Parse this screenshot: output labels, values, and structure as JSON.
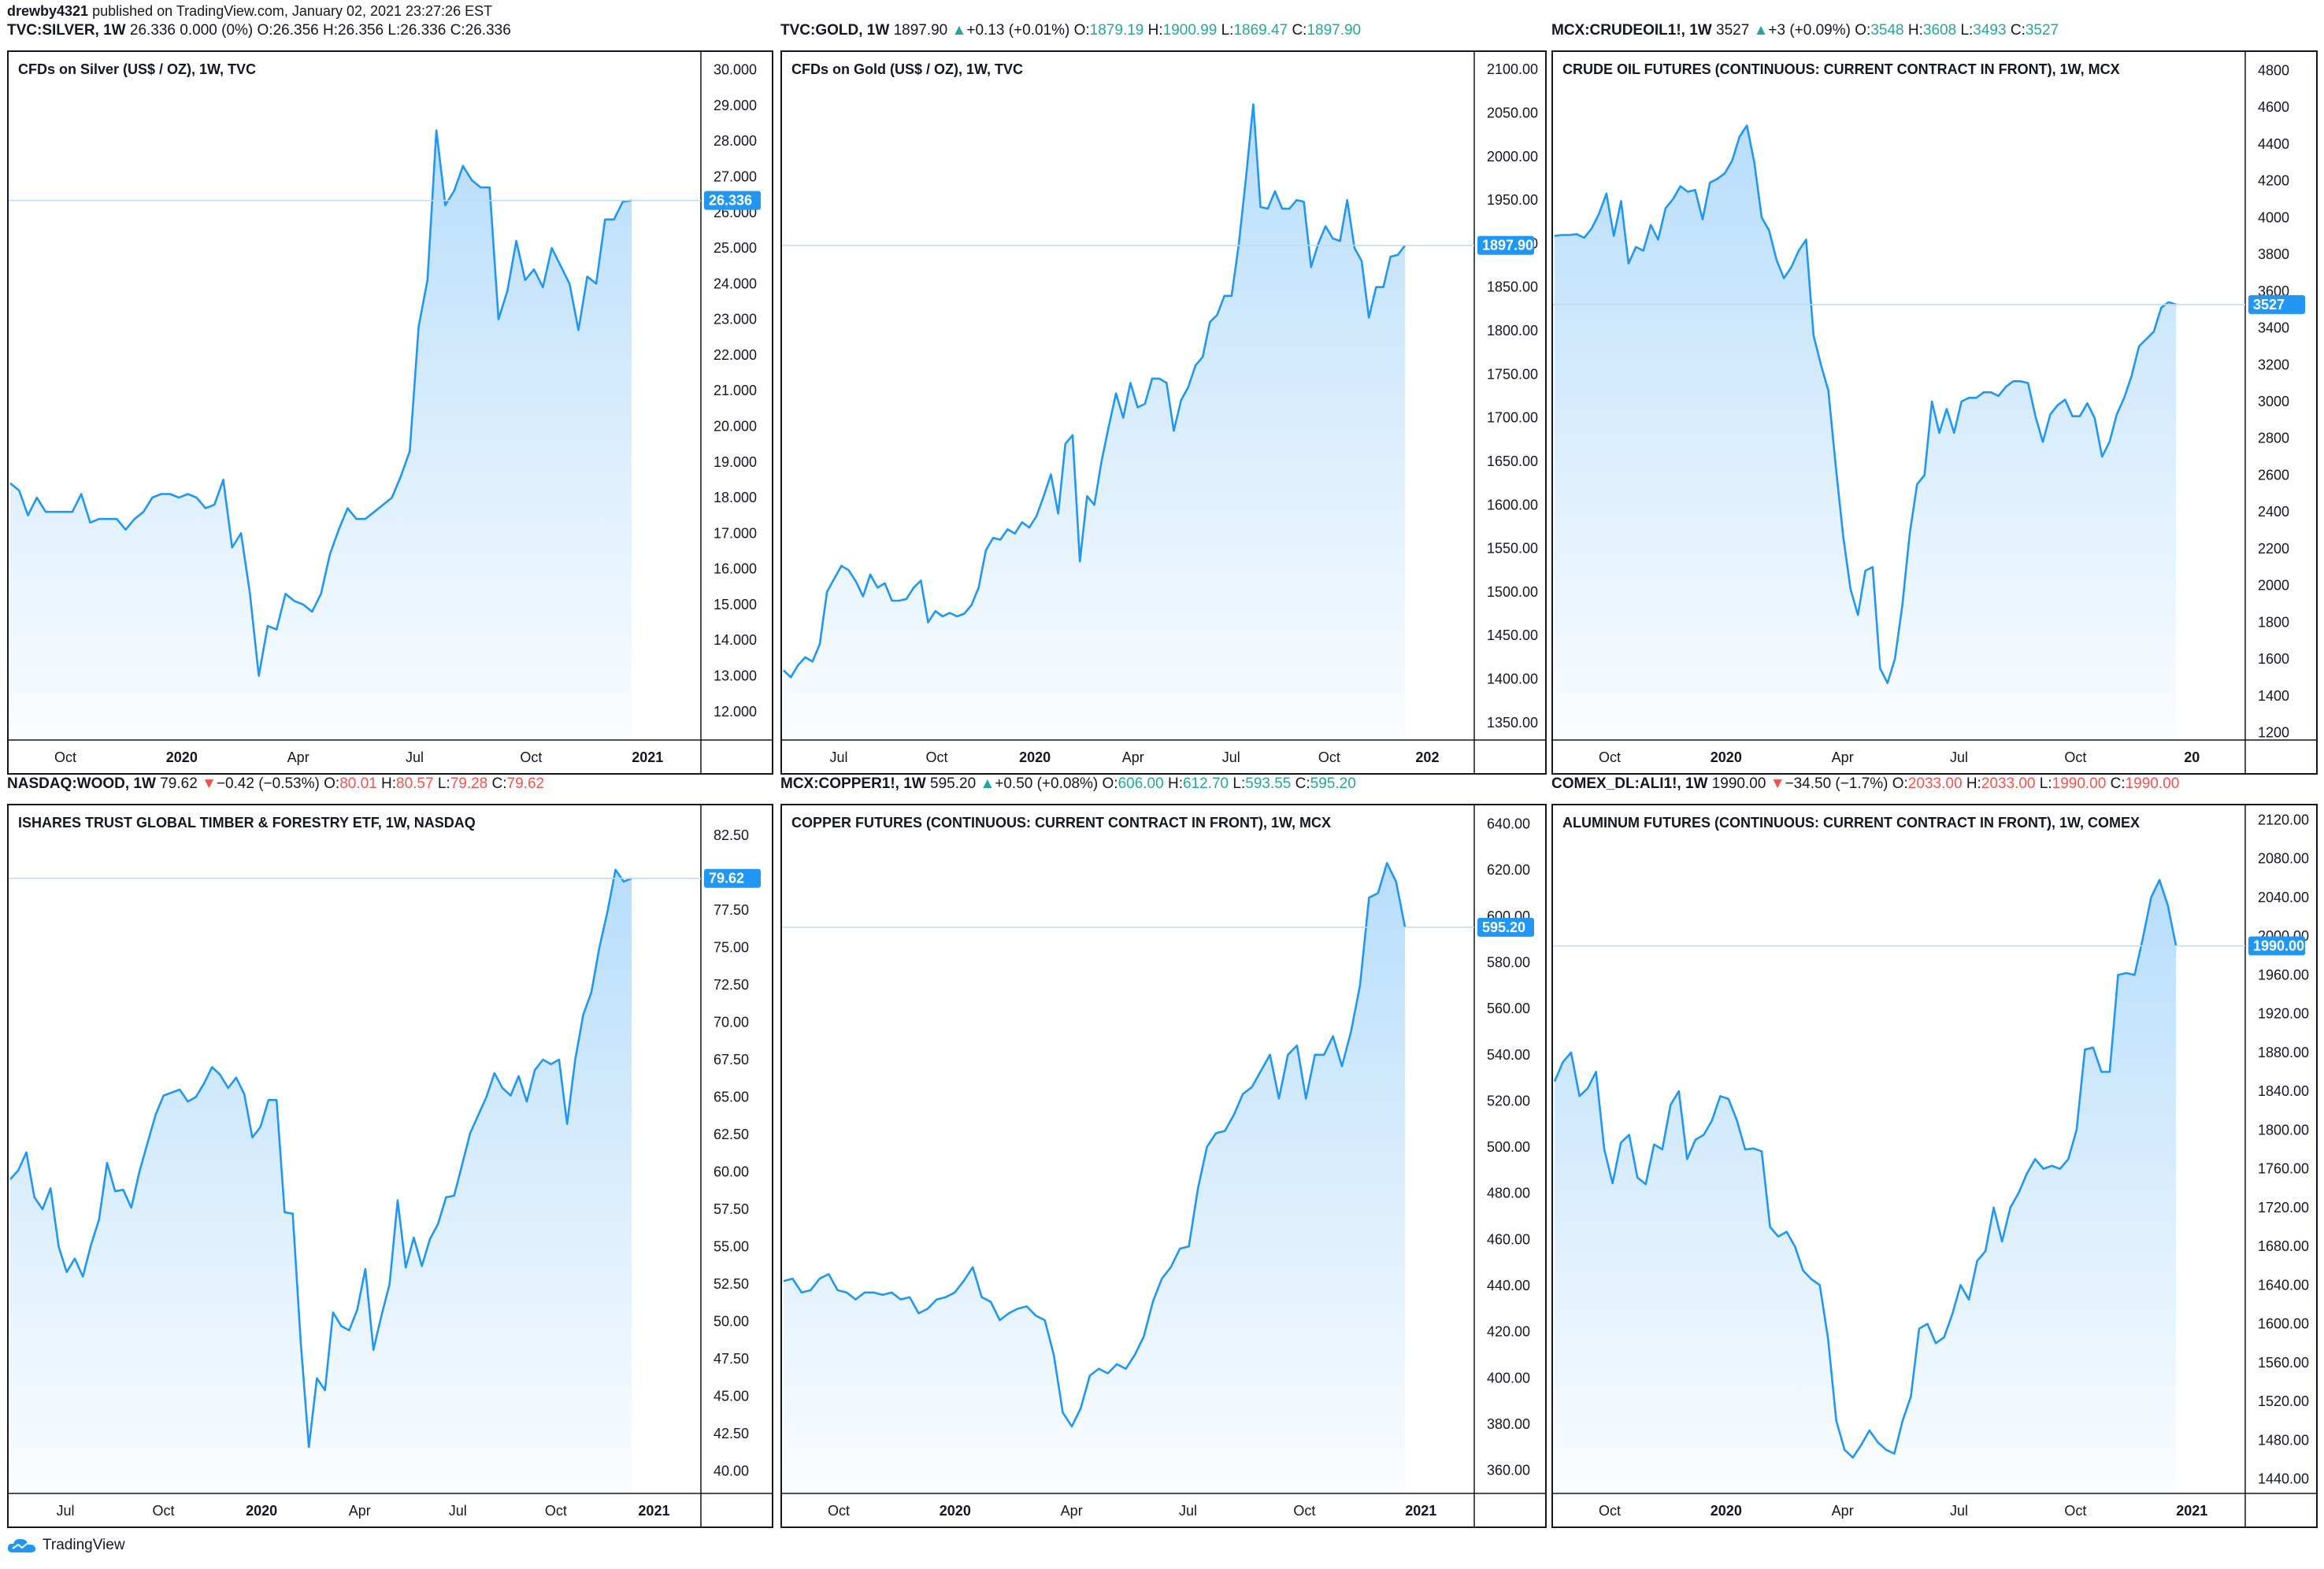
{
  "publisher": {
    "author": "drewby4321",
    "text": "published on TradingView.com, January 02, 2021 23:27:26 EST"
  },
  "footer": {
    "brand": "TradingView"
  },
  "colors": {
    "line": "#2196f3",
    "up": "#26a69a",
    "down": "#ef5350",
    "grid_price_line": "#bcdcf6"
  },
  "panels": [
    {
      "header": {
        "symbol": "TVC:SILVER, 1W",
        "last": "26.336",
        "change": "0.000 (0%)",
        "dir": "flat",
        "o": "26.356",
        "h": "26.356",
        "l": "26.336",
        "c": "26.336"
      },
      "title": "CFDs on Silver (US$ / OZ), 1W, TVC",
      "price_tag": "26.336",
      "y_ticks": [
        "30.000",
        "29.000",
        "28.000",
        "27.000",
        "26.000",
        "25.000",
        "24.000",
        "23.000",
        "22.000",
        "21.000",
        "20.000",
        "19.000",
        "18.000",
        "17.000",
        "16.000",
        "15.000",
        "14.000",
        "13.000",
        "12.000"
      ],
      "x_ticks": [
        "Oct",
        "2020",
        "Apr",
        "Jul",
        "Oct",
        "2021"
      ]
    },
    {
      "header": {
        "symbol": "TVC:GOLD, 1W",
        "last": "1897.90",
        "change": "+0.13 (+0.01%)",
        "dir": "up",
        "o": "1879.19",
        "h": "1900.99",
        "l": "1869.47",
        "c": "1897.90"
      },
      "title": "CFDs on Gold (US$ / OZ), 1W, TVC",
      "price_tag": "1897.90",
      "y_ticks": [
        "2100.00",
        "2050.00",
        "2000.00",
        "1950.00",
        "1900.00",
        "1850.00",
        "1800.00",
        "1750.00",
        "1700.00",
        "1650.00",
        "1600.00",
        "1550.00",
        "1500.00",
        "1450.00",
        "1400.00",
        "1350.00"
      ],
      "x_ticks": [
        "Jul",
        "Oct",
        "2020",
        "Apr",
        "Jul",
        "Oct",
        "202"
      ]
    },
    {
      "header": {
        "symbol": "MCX:CRUDEOIL1!, 1W",
        "last": "3527",
        "change": "+3 (+0.09%)",
        "dir": "up",
        "o": "3548",
        "h": "3608",
        "l": "3493",
        "c": "3527"
      },
      "title": "CRUDE OIL FUTURES (CONTINUOUS: CURRENT CONTRACT IN FRONT), 1W, MCX",
      "price_tag": "3527",
      "y_ticks": [
        "4800",
        "4600",
        "4400",
        "4200",
        "4000",
        "3800",
        "3600",
        "3400",
        "3200",
        "3000",
        "2800",
        "2600",
        "2400",
        "2200",
        "2000",
        "1800",
        "1600",
        "1400",
        "1200"
      ],
      "x_ticks": [
        "Oct",
        "2020",
        "Apr",
        "Jul",
        "Oct",
        "20"
      ]
    },
    {
      "header": {
        "symbol": "NASDAQ:WOOD, 1W",
        "last": "79.62",
        "change": "−0.42 (−0.53%)",
        "dir": "down",
        "o": "80.01",
        "h": "80.57",
        "l": "79.28",
        "c": "79.62"
      },
      "title": "ISHARES TRUST GLOBAL TIMBER & FORESTRY ETF, 1W, NASDAQ",
      "price_tag": "79.62",
      "y_ticks": [
        "82.50",
        "77.50",
        "75.00",
        "72.50",
        "70.00",
        "67.50",
        "65.00",
        "62.50",
        "60.00",
        "57.50",
        "55.00",
        "52.50",
        "50.00",
        "47.50",
        "45.00",
        "42.50",
        "40.00"
      ],
      "x_ticks": [
        "Jul",
        "Oct",
        "2020",
        "Apr",
        "Jul",
        "Oct",
        "2021"
      ]
    },
    {
      "header": {
        "symbol": "MCX:COPPER1!, 1W",
        "last": "595.20",
        "change": "+0.50 (+0.08%)",
        "dir": "up",
        "o": "606.00",
        "h": "612.70",
        "l": "593.55",
        "c": "595.20"
      },
      "title": "COPPER FUTURES (CONTINUOUS: CURRENT CONTRACT IN FRONT), 1W, MCX",
      "price_tag": "595.20",
      "y_ticks": [
        "640.00",
        "620.00",
        "600.00",
        "580.00",
        "560.00",
        "540.00",
        "520.00",
        "500.00",
        "480.00",
        "460.00",
        "440.00",
        "420.00",
        "400.00",
        "380.00",
        "360.00"
      ],
      "x_ticks": [
        "Oct",
        "2020",
        "Apr",
        "Jul",
        "Oct",
        "2021"
      ]
    },
    {
      "header": {
        "symbol": "COMEX_DL:ALI1!, 1W",
        "last": "1990.00",
        "change": "−34.50 (−1.7%)",
        "dir": "down",
        "o": "2033.00",
        "h": "2033.00",
        "l": "1990.00",
        "c": "1990.00"
      },
      "title": "ALUMINUM FUTURES (CONTINUOUS: CURRENT CONTRACT IN FRONT), 1W, COMEX",
      "price_tag": "1990.00",
      "y_ticks": [
        "2120.00",
        "2080.00",
        "2040.00",
        "2000.00",
        "1960.00",
        "1920.00",
        "1880.00",
        "1840.00",
        "1800.00",
        "1760.00",
        "1720.00",
        "1680.00",
        "1640.00",
        "1600.00",
        "1560.00",
        "1520.00",
        "1480.00",
        "1440.00"
      ],
      "x_ticks": [
        "Oct",
        "2020",
        "Apr",
        "Jul",
        "Oct",
        "2021"
      ]
    }
  ],
  "chart_data": [
    {
      "type": "area",
      "title": "CFDs on Silver (US$ / OZ), 1W, TVC",
      "x_ticks": [
        "Oct",
        "2020",
        "Apr",
        "Jul",
        "Oct",
        "2021"
      ],
      "ylim": [
        11.2,
        30.5
      ],
      "last": 26.336,
      "values": [
        18.4,
        18.2,
        17.5,
        18.0,
        17.6,
        17.6,
        17.6,
        17.6,
        18.1,
        17.3,
        17.4,
        17.4,
        17.4,
        17.1,
        17.4,
        17.6,
        18.0,
        18.1,
        18.1,
        18.0,
        18.1,
        18.0,
        17.7,
        17.8,
        18.5,
        16.6,
        17.0,
        15.3,
        13.0,
        14.4,
        14.3,
        15.3,
        15.1,
        15.0,
        14.8,
        15.3,
        16.4,
        17.1,
        17.7,
        17.4,
        17.4,
        17.6,
        17.8,
        18.0,
        18.6,
        19.3,
        22.8,
        24.1,
        28.3,
        26.2,
        26.6,
        27.3,
        26.9,
        26.7,
        26.7,
        23.0,
        23.8,
        25.2,
        24.1,
        24.4,
        23.9,
        25.0,
        24.5,
        24.0,
        22.7,
        24.2,
        24.0,
        25.8,
        25.8,
        26.3,
        26.336
      ]
    },
    {
      "type": "area",
      "title": "CFDs on Gold (US$ / OZ), 1W, TVC",
      "x_ticks": [
        "Jul",
        "Oct",
        "2020",
        "Apr",
        "Jul",
        "Oct",
        "202"
      ],
      "ylim": [
        1330,
        2120
      ],
      "last": 1897.9,
      "values": [
        1410,
        1402,
        1416,
        1425,
        1420,
        1440,
        1500,
        1515,
        1530,
        1525,
        1512,
        1495,
        1520,
        1505,
        1510,
        1490,
        1490,
        1492,
        1505,
        1513,
        1465,
        1478,
        1472,
        1476,
        1472,
        1475,
        1485,
        1505,
        1548,
        1562,
        1560,
        1572,
        1567,
        1580,
        1574,
        1587,
        1610,
        1635,
        1590,
        1670,
        1680,
        1535,
        1610,
        1600,
        1650,
        1690,
        1728,
        1700,
        1740,
        1712,
        1716,
        1745,
        1745,
        1740,
        1685,
        1720,
        1735,
        1760,
        1770,
        1810,
        1818,
        1840,
        1840,
        1900,
        1976,
        2060,
        1942,
        1940,
        1960,
        1940,
        1940,
        1950,
        1948,
        1873,
        1900,
        1920,
        1906,
        1903,
        1950,
        1895,
        1880,
        1815,
        1850,
        1850,
        1885,
        1887,
        1897.9
      ]
    },
    {
      "type": "area",
      "title": "CRUDE OIL FUTURES (CONTINUOUS: CURRENT CONTRACT IN FRONT), 1W, MCX",
      "x_ticks": [
        "Oct",
        "2020",
        "Apr",
        "Jul",
        "Oct",
        "20"
      ],
      "ylim": [
        1160,
        4900
      ],
      "last": 3527,
      "values": [
        3900,
        3905,
        3905,
        3910,
        3890,
        3940,
        4020,
        4130,
        3900,
        4090,
        3750,
        3840,
        3820,
        3960,
        3880,
        4050,
        4100,
        4170,
        4140,
        4150,
        3990,
        4190,
        4210,
        4240,
        4310,
        4440,
        4500,
        4300,
        4000,
        3930,
        3770,
        3670,
        3730,
        3820,
        3880,
        3360,
        3200,
        3060,
        2650,
        2270,
        1980,
        1840,
        2080,
        2100,
        1550,
        1470,
        1600,
        1890,
        2280,
        2550,
        2600,
        3000,
        2830,
        2960,
        2830,
        3000,
        3020,
        3020,
        3050,
        3050,
        3030,
        3080,
        3110,
        3110,
        3100,
        2920,
        2780,
        2930,
        2980,
        3010,
        2920,
        2920,
        2990,
        2910,
        2700,
        2780,
        2930,
        3020,
        3140,
        3300,
        3340,
        3380,
        3510,
        3540,
        3527
      ]
    },
    {
      "type": "area",
      "title": "ISHARES TRUST GLOBAL TIMBER & FORESTRY ETF, 1W, NASDAQ",
      "x_ticks": [
        "Jul",
        "Oct",
        "2020",
        "Apr",
        "Jul",
        "Oct",
        "2021"
      ],
      "ylim": [
        38.5,
        84.5
      ],
      "last": 79.62,
      "values": [
        59.5,
        60.1,
        61.3,
        58.3,
        57.5,
        58.9,
        55.0,
        53.3,
        54.2,
        53.0,
        55.1,
        56.8,
        60.6,
        58.7,
        58.8,
        57.6,
        60.0,
        61.9,
        63.8,
        65.1,
        65.3,
        65.5,
        64.7,
        65.0,
        65.9,
        67.0,
        66.5,
        65.6,
        66.3,
        65.2,
        62.3,
        63.0,
        64.8,
        64.8,
        57.3,
        57.2,
        48.6,
        41.6,
        46.2,
        45.4,
        50.6,
        49.7,
        49.4,
        50.8,
        53.5,
        48.1,
        50.4,
        52.5,
        58.1,
        53.6,
        55.6,
        53.7,
        55.5,
        56.5,
        58.3,
        58.4,
        60.5,
        62.6,
        63.8,
        65.0,
        66.6,
        65.6,
        65.1,
        66.4,
        64.7,
        66.8,
        67.5,
        67.2,
        67.5,
        63.2,
        67.5,
        70.5,
        72.0,
        75.0,
        77.4,
        80.2,
        79.4,
        79.62
      ]
    },
    {
      "type": "area",
      "title": "COPPER FUTURES (CONTINUOUS: CURRENT CONTRACT IN FRONT), 1W, MCX",
      "x_ticks": [
        "Oct",
        "2020",
        "Apr",
        "Jul",
        "Oct",
        "2021"
      ],
      "ylim": [
        350,
        648
      ],
      "last": 595.2,
      "values": [
        442,
        443,
        437,
        438,
        443,
        445,
        438,
        437,
        434,
        437,
        437,
        436,
        437,
        434,
        435,
        428,
        430,
        434,
        435,
        437,
        442,
        448,
        435,
        433,
        425,
        428,
        430,
        431,
        427,
        425,
        410,
        385,
        379,
        387,
        401,
        404,
        402,
        406,
        404,
        410,
        418,
        433,
        443,
        448,
        456,
        457,
        482,
        500,
        506,
        507,
        514,
        523,
        526,
        533,
        540,
        521,
        540,
        544,
        521,
        540,
        540,
        548,
        535,
        550,
        570,
        608,
        610,
        623,
        615,
        595.2
      ]
    },
    {
      "type": "area",
      "title": "ALUMINUM FUTURES (CONTINUOUS: CURRENT CONTRACT IN FRONT), 1W, COMEX",
      "x_ticks": [
        "Oct",
        "2020",
        "Apr",
        "Jul",
        "Oct",
        "2021"
      ],
      "ylim": [
        1425,
        2135
      ],
      "last": 1990.0,
      "values": [
        1850,
        1870,
        1880,
        1835,
        1843,
        1860,
        1780,
        1745,
        1787,
        1795,
        1751,
        1744,
        1785,
        1780,
        1826,
        1840,
        1770,
        1790,
        1795,
        1810,
        1835,
        1832,
        1810,
        1780,
        1781,
        1778,
        1700,
        1690,
        1695,
        1680,
        1655,
        1646,
        1640,
        1585,
        1500,
        1470,
        1462,
        1475,
        1490,
        1478,
        1470,
        1466,
        1500,
        1525,
        1595,
        1600,
        1580,
        1586,
        1610,
        1640,
        1625,
        1665,
        1675,
        1720,
        1685,
        1720,
        1735,
        1755,
        1770,
        1760,
        1763,
        1760,
        1770,
        1800,
        1883,
        1885,
        1860,
        1860,
        1960,
        1962,
        1960,
        1998,
        2040,
        2058,
        2032,
        1990
      ]
    }
  ]
}
